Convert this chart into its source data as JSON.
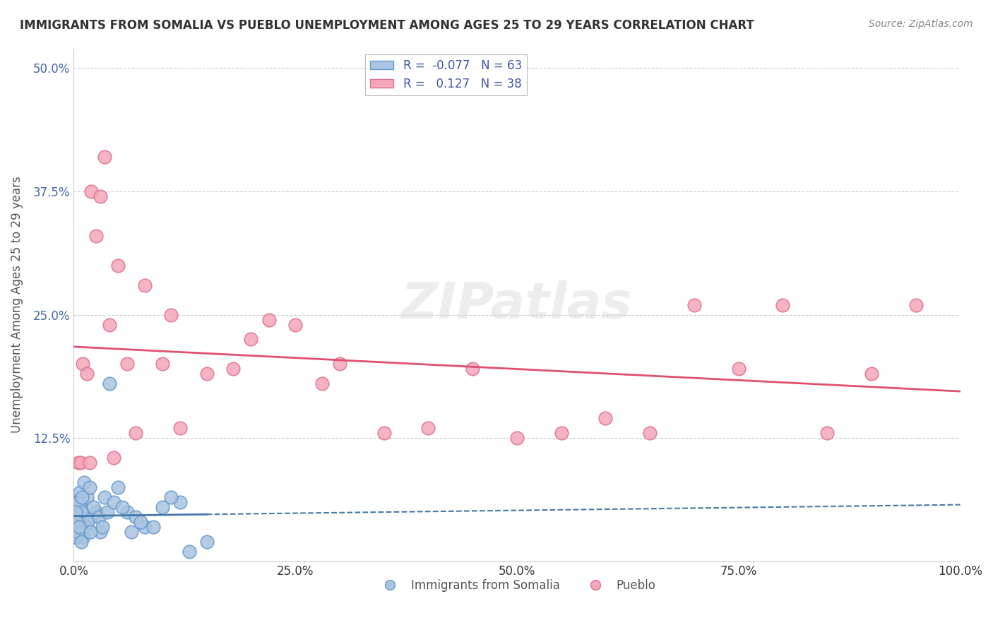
{
  "title": "IMMIGRANTS FROM SOMALIA VS PUEBLO UNEMPLOYMENT AMONG AGES 25 TO 29 YEARS CORRELATION CHART",
  "source": "Source: ZipAtlas.com",
  "xlabel": "",
  "ylabel": "Unemployment Among Ages 25 to 29 years",
  "xlim": [
    0,
    100
  ],
  "ylim": [
    0,
    52
  ],
  "xticks": [
    0,
    25,
    50,
    75,
    100
  ],
  "xtick_labels": [
    "0.0%",
    "25.0%",
    "50.0%",
    "75.0%",
    "100.0%"
  ],
  "yticks": [
    0,
    12.5,
    25.0,
    37.5,
    50.0
  ],
  "ytick_labels": [
    "",
    "12.5%",
    "25.0%",
    "37.5%",
    "50.0%"
  ],
  "legend_entries": [
    {
      "label": "R =  -0.077   N = 63",
      "color": "#a8c4e0"
    },
    {
      "label": "R =   0.127   N = 38",
      "color": "#f4a7b9"
    }
  ],
  "watermark": "ZIPatlas",
  "background_color": "#ffffff",
  "grid_color": "#cccccc",
  "somalia_color": "#a8c4e0",
  "somalia_edge": "#6699cc",
  "pueblo_color": "#f4a7b9",
  "pueblo_edge": "#e07090",
  "somalia_R": -0.077,
  "somalia_N": 63,
  "pueblo_R": 0.127,
  "pueblo_N": 38,
  "somalia_scatter_x": [
    0.1,
    0.15,
    0.2,
    0.25,
    0.3,
    0.35,
    0.4,
    0.5,
    0.6,
    0.7,
    0.8,
    0.9,
    1.0,
    1.2,
    1.5,
    1.8,
    2.0,
    2.5,
    3.0,
    3.5,
    4.0,
    5.0,
    6.0,
    7.0,
    8.0,
    10.0,
    12.0,
    0.05,
    0.08,
    0.12,
    0.18,
    0.22,
    0.28,
    0.38,
    0.45,
    0.55,
    0.65,
    0.75,
    0.85,
    0.95,
    1.1,
    1.3,
    1.6,
    1.9,
    2.2,
    2.8,
    3.2,
    3.8,
    4.5,
    5.5,
    6.5,
    7.5,
    9.0,
    11.0,
    13.0,
    15.0,
    0.07,
    0.13,
    0.23,
    0.33,
    0.42,
    0.62,
    0.82
  ],
  "somalia_scatter_y": [
    3.5,
    4.0,
    5.0,
    3.0,
    4.5,
    6.0,
    3.5,
    5.5,
    4.0,
    7.0,
    5.5,
    4.0,
    5.0,
    8.0,
    6.5,
    7.5,
    4.5,
    5.0,
    3.0,
    6.5,
    18.0,
    7.5,
    5.0,
    4.5,
    3.5,
    5.5,
    6.0,
    2.5,
    3.0,
    4.5,
    5.5,
    3.0,
    4.0,
    2.5,
    3.5,
    6.0,
    4.0,
    3.0,
    5.0,
    6.5,
    2.5,
    3.5,
    4.0,
    3.0,
    5.5,
    4.5,
    3.5,
    5.0,
    6.0,
    5.5,
    3.0,
    4.0,
    3.5,
    6.5,
    1.0,
    2.0,
    2.5,
    3.5,
    5.0,
    4.0,
    3.0,
    3.5,
    2.0
  ],
  "pueblo_scatter_x": [
    1.0,
    2.0,
    2.5,
    3.0,
    3.5,
    5.0,
    8.0,
    10.0,
    15.0,
    20.0,
    25.0,
    30.0,
    35.0,
    40.0,
    50.0,
    60.0,
    70.0,
    80.0,
    90.0,
    0.5,
    1.5,
    4.0,
    6.0,
    12.0,
    18.0,
    22.0,
    28.0,
    45.0,
    55.0,
    65.0,
    75.0,
    85.0,
    95.0,
    0.8,
    1.8,
    4.5,
    7.0,
    11.0
  ],
  "pueblo_scatter_y": [
    20.0,
    37.5,
    33.0,
    37.0,
    41.0,
    30.0,
    28.0,
    20.0,
    19.0,
    22.5,
    24.0,
    20.0,
    13.0,
    13.5,
    12.5,
    14.5,
    26.0,
    26.0,
    19.0,
    10.0,
    19.0,
    24.0,
    20.0,
    13.5,
    19.5,
    24.5,
    18.0,
    19.5,
    13.0,
    13.0,
    19.5,
    13.0,
    26.0,
    10.0,
    10.0,
    10.5,
    13.0,
    25.0
  ]
}
